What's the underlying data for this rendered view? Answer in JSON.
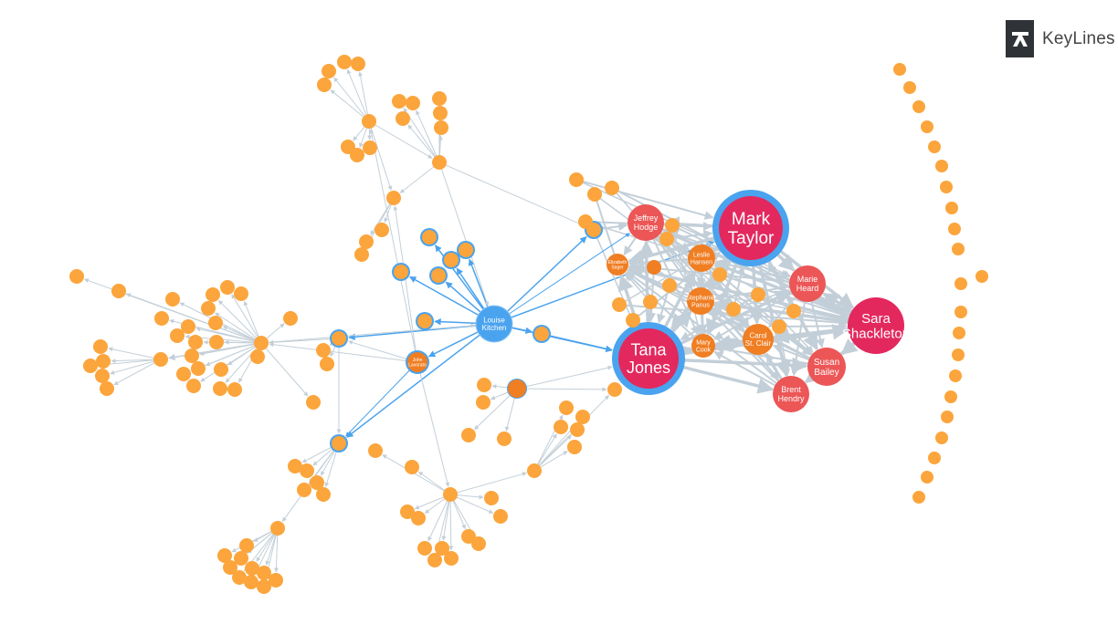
{
  "brand": {
    "name": "KeyLines",
    "icon": "keylines-logo-icon"
  },
  "colors": {
    "node_default": "#FBA53C",
    "node_dark_orange": "#F07E22",
    "node_pink": "#E3285E",
    "node_coral": "#EC5656",
    "node_blue": "#4AA3EE",
    "highlight_ring": "#4AA3EE",
    "edge": "#C3CFD8",
    "edge_highlight": "#4AA3EE"
  },
  "labeled_nodes": [
    {
      "id": "mark-taylor",
      "lines": [
        "Mark",
        "Taylor"
      ],
      "color": "node_pink"
    },
    {
      "id": "tana-jones",
      "lines": [
        "Tana",
        "Jones"
      ],
      "color": "node_pink"
    },
    {
      "id": "sara-shackleton",
      "lines": [
        "Sara",
        "Shackleton"
      ],
      "color": "node_pink"
    },
    {
      "id": "jeffrey-hodge",
      "lines": [
        "Jeffrey",
        "Hodge"
      ],
      "color": "node_coral"
    },
    {
      "id": "marie-heard",
      "lines": [
        "Marie",
        "Heard"
      ],
      "color": "node_coral"
    },
    {
      "id": "susan-bailey",
      "lines": [
        "Susan",
        "Bailey"
      ],
      "color": "node_coral"
    },
    {
      "id": "brent-hendry",
      "lines": [
        "Brent",
        "Hendry"
      ],
      "color": "node_coral"
    },
    {
      "id": "leslie-hansen",
      "lines": [
        "Leslie",
        "Hansen"
      ],
      "color": "node_dark_orange"
    },
    {
      "id": "stephanie-panus",
      "lines": [
        "Stephanie",
        "Panus"
      ],
      "color": "node_dark_orange"
    },
    {
      "id": "mary-cook",
      "lines": [
        "Mary",
        "Cook"
      ],
      "color": "node_dark_orange"
    },
    {
      "id": "carol-st-clair",
      "lines": [
        "Carol",
        "St. Clair"
      ],
      "color": "node_dark_orange"
    },
    {
      "id": "elizabeth-sager",
      "lines": [
        "Elizabeth",
        "Sager"
      ],
      "color": "node_dark_orange"
    },
    {
      "id": "louise-kitchen",
      "lines": [
        "Louise",
        "Kitchen"
      ],
      "color": "node_blue"
    },
    {
      "id": "john-lavorato",
      "lines": [
        "John",
        "Lavorato"
      ],
      "color": "node_dark_orange"
    }
  ]
}
